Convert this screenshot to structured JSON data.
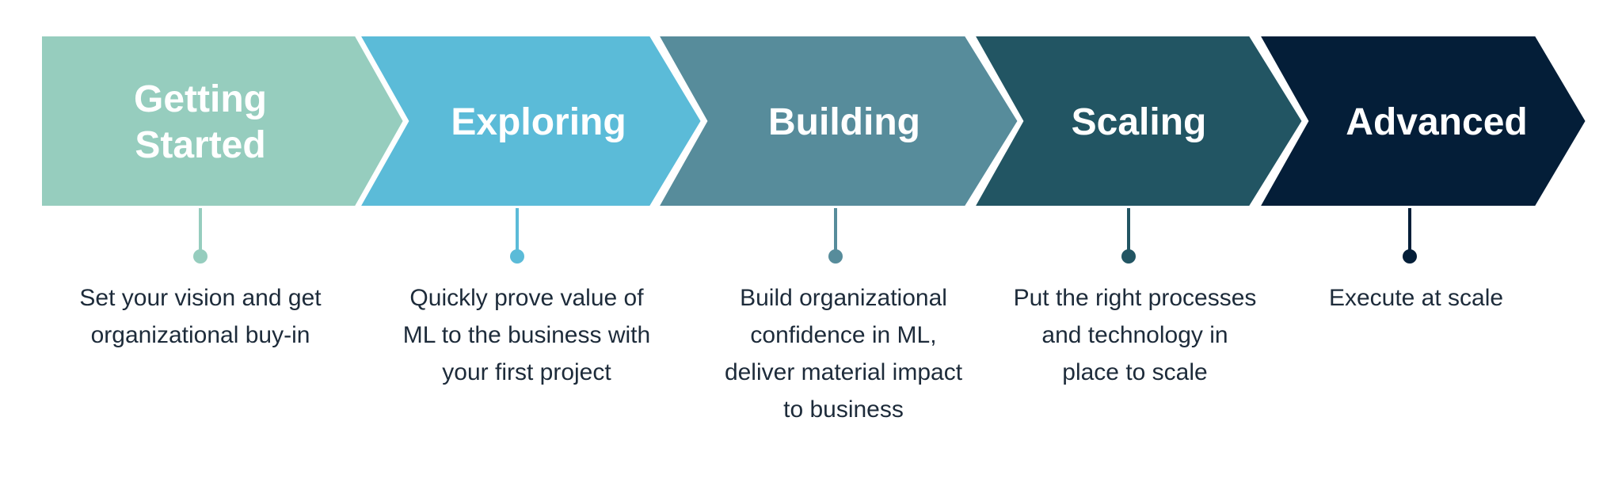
{
  "stages": [
    {
      "title_lines": [
        "Getting",
        "Started"
      ],
      "description": "Set your vision and get\norganizational buy-in",
      "color": "#96cdbe"
    },
    {
      "title_lines": [
        "Exploring"
      ],
      "description": "Quickly prove value of\nML to the business with\nyour first project",
      "color": "#5bbbd8"
    },
    {
      "title_lines": [
        "Building"
      ],
      "description": "Build organizational\nconfidence in ML,\ndeliver material impact\nto business",
      "color": "#578c9b"
    },
    {
      "title_lines": [
        "Scaling"
      ],
      "description": "Put the right processes\nand technology in\nplace to scale",
      "color": "#225563"
    },
    {
      "title_lines": [
        "Advanced"
      ],
      "description": "Execute at scale",
      "color": "#041e38"
    }
  ]
}
